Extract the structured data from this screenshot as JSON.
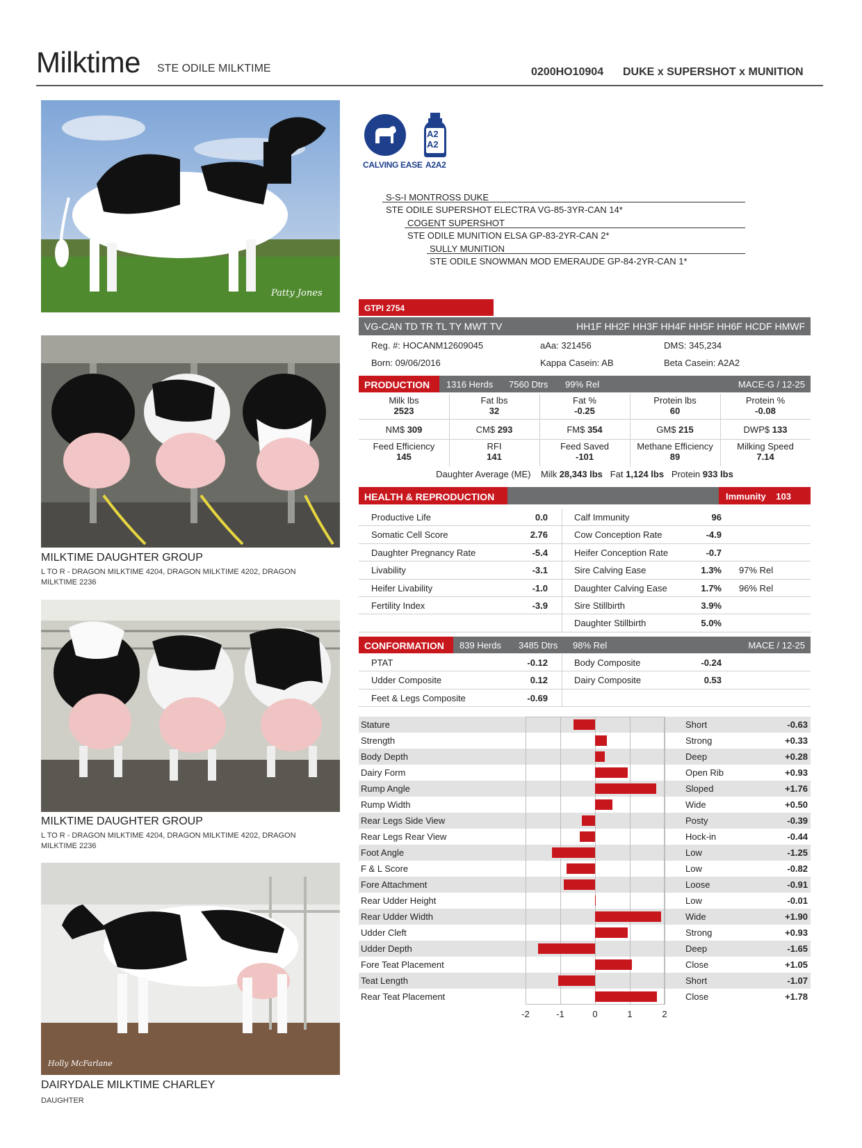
{
  "header": {
    "name": "Milktime",
    "full_name": "STE ODILE MILKTIME",
    "code": "0200HO10904",
    "pedigree_short": "DUKE x SUPERSHOT x MUNITION"
  },
  "photos": [
    {
      "caption": "Patty Jones"
    },
    {
      "title": "MILKTIME DAUGHTER GROUP",
      "subtitle": "L TO R - DRAGON MILKTIME 4204, DRAGON MILKTIME 4202, DRAGON MILKTIME 2236"
    },
    {
      "title": "MILKTIME DAUGHTER GROUP",
      "subtitle": "L TO R - DRAGON MILKTIME 4204, DRAGON MILKTIME 4202, DRAGON MILKTIME 2236"
    },
    {
      "title": "DAIRYDALE MILKTIME CHARLEY",
      "subtitle": "DAUGHTER",
      "caption": "Holly McFarlane"
    }
  ],
  "badges": {
    "calving_ease": "CALVING EASE",
    "a2a2_label": "A2A2",
    "a2_top": "A2",
    "a2_bottom": "A2"
  },
  "pedigree": [
    "S-S-I MONTROSS DUKE",
    "STE ODILE SUPERSHOT ELECTRA VG-85-3YR-CAN 14*",
    "COGENT SUPERSHOT",
    "STE ODILE MUNITION ELSA GP-83-2YR-CAN 2*",
    "SULLY MUNITION",
    "STE ODILE SNOWMAN MOD EMERAUDE GP-84-2YR-CAN 1*"
  ],
  "gtpi": {
    "label": "GTPI",
    "value": "2754"
  },
  "codes": {
    "left": "VG-CAN TD TR TL TY MWT TV",
    "right": "HH1F HH2F HH3F HH4F HH5F HH6F HCDF HMWF"
  },
  "info": {
    "reg": "Reg. #: HOCANM12609045",
    "aaa": "aAa: 321456",
    "dms": "DMS: 345,234",
    "born": "Born: 09/06/2016",
    "kappa": "Kappa Casein: AB",
    "beta": "Beta Casein: A2A2"
  },
  "production": {
    "title": "PRODUCTION",
    "herds": "1316 Herds",
    "dtrs": "7560 Dtrs",
    "rel": "99% Rel",
    "mace": "MACE-G / 12-25",
    "row1": [
      {
        "label": "Milk lbs",
        "value": "2523"
      },
      {
        "label": "Fat lbs",
        "value": "32"
      },
      {
        "label": "Fat %",
        "value": "-0.25"
      },
      {
        "label": "Protein lbs",
        "value": "60"
      },
      {
        "label": "Protein %",
        "value": "-0.08"
      }
    ],
    "row2": [
      {
        "label": "NM$",
        "value": "309"
      },
      {
        "label": "CM$",
        "value": "293"
      },
      {
        "label": "FM$",
        "value": "354"
      },
      {
        "label": "GM$",
        "value": "215"
      },
      {
        "label": "DWP$",
        "value": "133"
      }
    ],
    "row3": [
      {
        "label": "Feed Efficiency",
        "value": "145"
      },
      {
        "label": "RFI",
        "value": "141"
      },
      {
        "label": "Feed Saved",
        "value": "-101"
      },
      {
        "label": "Methane Efficiency",
        "value": "89"
      },
      {
        "label": "Milking Speed",
        "value": "7.14"
      }
    ],
    "daughter_avg": {
      "label": "Daughter Average (ME)",
      "milk_label": "Milk",
      "milk": "28,343 lbs",
      "fat_label": "Fat",
      "fat": "1,124 lbs",
      "protein_label": "Protein",
      "protein": "933 lbs"
    }
  },
  "health": {
    "title": "HEALTH & REPRODUCTION",
    "immunity_label": "Immunity",
    "immunity_value": "103",
    "left": [
      {
        "label": "Productive Life",
        "value": "0.0"
      },
      {
        "label": "Somatic Cell Score",
        "value": "2.76"
      },
      {
        "label": "Daughter Pregnancy Rate",
        "value": "-5.4"
      },
      {
        "label": "Livability",
        "value": "-3.1"
      },
      {
        "label": "Heifer Livability",
        "value": "-1.0"
      },
      {
        "label": "Fertility Index",
        "value": "-3.9"
      }
    ],
    "right": [
      {
        "label": "Calf Immunity",
        "value": "96",
        "rel": ""
      },
      {
        "label": "Cow Conception Rate",
        "value": "-4.9",
        "rel": ""
      },
      {
        "label": "Heifer Conception Rate",
        "value": "-0.7",
        "rel": ""
      },
      {
        "label": "Sire Calving Ease",
        "value": "1.3%",
        "rel": "97% Rel"
      },
      {
        "label": "Daughter Calving Ease",
        "value": "1.7%",
        "rel": "96% Rel"
      },
      {
        "label": "Sire Stillbirth",
        "value": "3.9%",
        "rel": ""
      },
      {
        "label": "Daughter Stillbirth",
        "value": "5.0%",
        "rel": ""
      }
    ]
  },
  "conformation": {
    "title": "CONFORMATION",
    "herds": "839 Herds",
    "dtrs": "3485 Dtrs",
    "rel": "98% Rel",
    "mace": "MACE / 12-25",
    "left": [
      {
        "label": "PTAT",
        "value": "-0.12"
      },
      {
        "label": "Udder Composite",
        "value": "0.12"
      },
      {
        "label": "Feet & Legs Composite",
        "value": "-0.69"
      }
    ],
    "right": [
      {
        "label": "Body Composite",
        "value": "-0.24"
      },
      {
        "label": "Dairy Composite",
        "value": "0.53"
      }
    ]
  },
  "chart_data": {
    "type": "bar",
    "orientation": "horizontal",
    "xlim": [
      -2,
      2
    ],
    "ticks": [
      "-2",
      "-1",
      "0",
      "1",
      "2"
    ],
    "color": "#c8161d",
    "traits": [
      {
        "name": "Stature",
        "desc": "Short",
        "value": -0.63,
        "label": "-0.63"
      },
      {
        "name": "Strength",
        "desc": "Strong",
        "value": 0.33,
        "label": "+0.33"
      },
      {
        "name": "Body Depth",
        "desc": "Deep",
        "value": 0.28,
        "label": "+0.28"
      },
      {
        "name": "Dairy Form",
        "desc": "Open Rib",
        "value": 0.93,
        "label": "+0.93"
      },
      {
        "name": "Rump Angle",
        "desc": "Sloped",
        "value": 1.76,
        "label": "+1.76"
      },
      {
        "name": "Rump Width",
        "desc": "Wide",
        "value": 0.5,
        "label": "+0.50"
      },
      {
        "name": "Rear Legs Side View",
        "desc": "Posty",
        "value": -0.39,
        "label": "-0.39"
      },
      {
        "name": "Rear Legs Rear View",
        "desc": "Hock-in",
        "value": -0.44,
        "label": "-0.44"
      },
      {
        "name": "Foot Angle",
        "desc": "Low",
        "value": -1.25,
        "label": "-1.25"
      },
      {
        "name": "F & L Score",
        "desc": "Low",
        "value": -0.82,
        "label": "-0.82"
      },
      {
        "name": "Fore Attachment",
        "desc": "Loose",
        "value": -0.91,
        "label": "-0.91"
      },
      {
        "name": "Rear Udder Height",
        "desc": "Low",
        "value": -0.01,
        "label": "-0.01"
      },
      {
        "name": "Rear Udder Width",
        "desc": "Wide",
        "value": 1.9,
        "label": "+1.90"
      },
      {
        "name": "Udder Cleft",
        "desc": "Strong",
        "value": 0.93,
        "label": "+0.93"
      },
      {
        "name": "Udder Depth",
        "desc": "Deep",
        "value": -1.65,
        "label": "-1.65"
      },
      {
        "name": "Fore Teat Placement",
        "desc": "Close",
        "value": 1.05,
        "label": "+1.05"
      },
      {
        "name": "Teat Length",
        "desc": "Short",
        "value": -1.07,
        "label": "-1.07"
      },
      {
        "name": "Rear Teat Placement",
        "desc": "Close",
        "value": 1.78,
        "label": "+1.78"
      }
    ]
  }
}
